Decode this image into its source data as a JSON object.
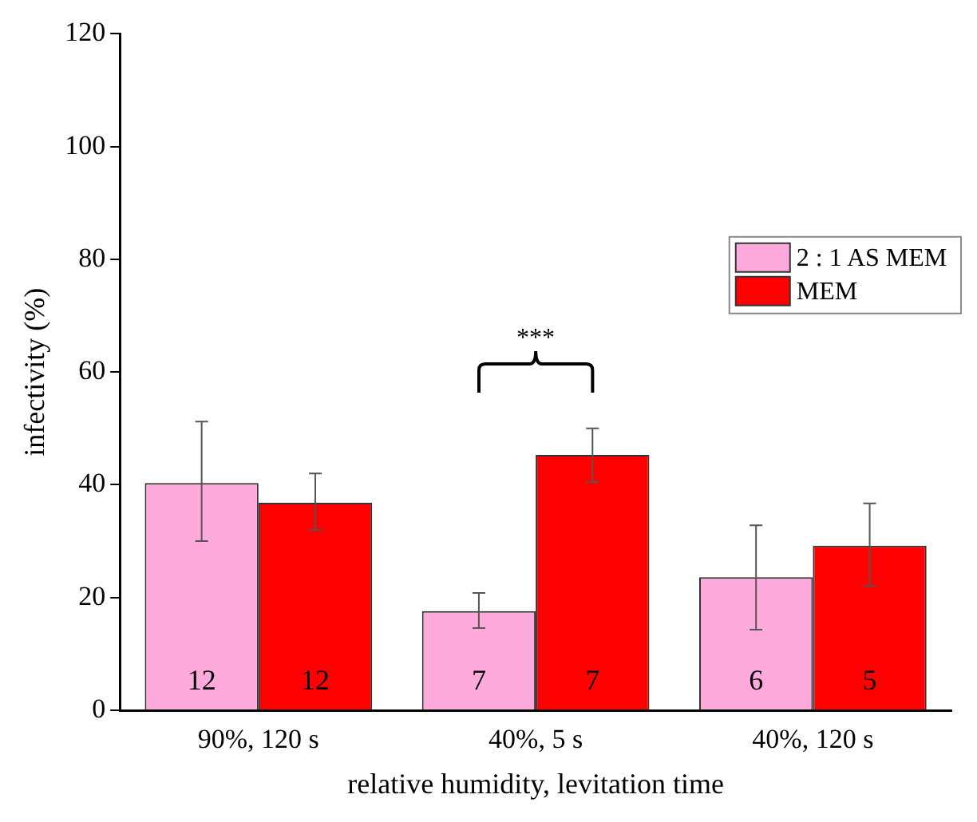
{
  "chart_data": {
    "type": "bar",
    "xlabel": "relative humidity, levitation time",
    "ylabel": "infectivity (%)",
    "categories": [
      "90%, 120 s",
      "40%, 5 s",
      "40%, 120 s"
    ],
    "series": [
      {
        "name": "2 : 1 AS MEM",
        "color": "#ffaadd",
        "values": [
          40.3,
          17.6,
          23.6
        ],
        "errors": [
          [
            30,
            51.2
          ],
          [
            14.6,
            20.8
          ],
          [
            14.3,
            32.8
          ]
        ]
      },
      {
        "name": "MEM",
        "color": "#ff0000",
        "values": [
          36.8,
          45.3,
          29.2
        ],
        "errors": [
          [
            32,
            42
          ],
          [
            40.5,
            50
          ],
          [
            22,
            36.7
          ]
        ]
      }
    ],
    "ylim": [
      0,
      120
    ],
    "yticks": [
      0,
      20,
      40,
      60,
      80,
      100,
      120
    ],
    "grid": false,
    "legend": "top right",
    "annotations": [
      "***",
      {
        "text": "12",
        "x": "90%, 120 s",
        "y": 5
      },
      {
        "text": "12",
        "x": "90%, 120 s",
        "y": 5
      },
      {
        "text": "7",
        "x": "40%, 5 s",
        "y": 5
      },
      {
        "text": "7",
        "x": "40%, 5 s",
        "y": 5
      },
      {
        "text": "6",
        "x": "40%, 120 s",
        "y": 5
      },
      {
        "text": "5",
        "x": "40%, 120 s",
        "y": 5
      }
    ]
  }
}
